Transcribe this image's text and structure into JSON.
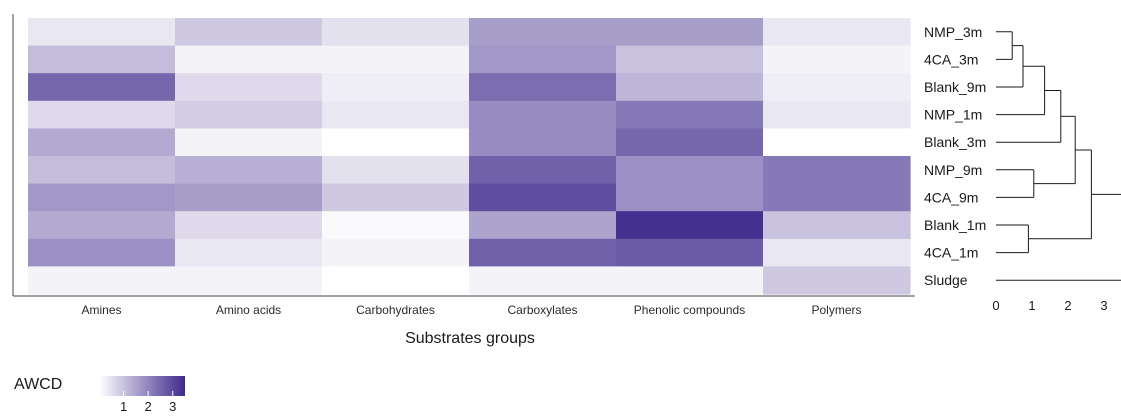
{
  "chart_data": {
    "type": "heatmap",
    "xlabel": "Substrates groups",
    "columns": [
      "Amines",
      "Amino acids",
      "Carbohydrates",
      "Carboxylates",
      "Phenolic compounds",
      "Polymers"
    ],
    "rows": [
      "NMP_3m",
      "4CA_3m",
      "Blank_9m",
      "NMP_1m",
      "Blank_3m",
      "NMP_9m",
      "4CA_9m",
      "Blank_1m",
      "4CA_1m",
      "Sludge"
    ],
    "values": [
      [
        0.4,
        0.9,
        0.5,
        1.6,
        1.6,
        0.4
      ],
      [
        1.1,
        0.2,
        0.2,
        1.7,
        1.0,
        0.2
      ],
      [
        2.5,
        0.6,
        0.3,
        2.4,
        1.2,
        0.3
      ],
      [
        0.6,
        0.8,
        0.4,
        1.9,
        2.2,
        0.4
      ],
      [
        1.4,
        0.2,
        0.0,
        1.9,
        2.5,
        0.0
      ],
      [
        1.1,
        1.3,
        0.5,
        2.6,
        1.8,
        2.2
      ],
      [
        1.7,
        1.6,
        0.9,
        2.9,
        1.8,
        2.2
      ],
      [
        1.4,
        0.6,
        0.1,
        1.5,
        3.4,
        1.0
      ],
      [
        1.8,
        0.4,
        0.2,
        2.6,
        2.7,
        0.4
      ],
      [
        0.2,
        0.2,
        0.0,
        0.2,
        0.2,
        0.9
      ]
    ],
    "color_scale": {
      "title": "AWCD",
      "min": 0,
      "max": 3.5,
      "ticks": [
        1,
        2,
        3
      ],
      "low_color": "#ffffff",
      "high_color": "#3f2a8c"
    },
    "dendrogram": {
      "axis_ticks": [
        0,
        1,
        2,
        3
      ],
      "xlim": [
        0,
        3.5
      ],
      "merges": [
        {
          "a": "NMP_3m",
          "b": "4CA_3m",
          "height": 0.45
        },
        {
          "a": "Blank_1m",
          "b": "4CA_1m",
          "height": 0.9
        },
        {
          "a": "NMP_9m",
          "b": "4CA_9m",
          "height": 1.05
        },
        {
          "a": "c1",
          "b": "Blank_9m",
          "height": 0.75
        },
        {
          "a": "c4",
          "b": "NMP_1m",
          "height": 1.35
        },
        {
          "a": "c5",
          "b": "Blank_3m",
          "height": 1.8
        },
        {
          "a": "c6",
          "b": "c3",
          "height": 2.2
        },
        {
          "a": "c7",
          "b": "c2",
          "height": 2.65
        },
        {
          "a": "c8",
          "b": "Sludge",
          "height": 3.5
        }
      ]
    }
  }
}
